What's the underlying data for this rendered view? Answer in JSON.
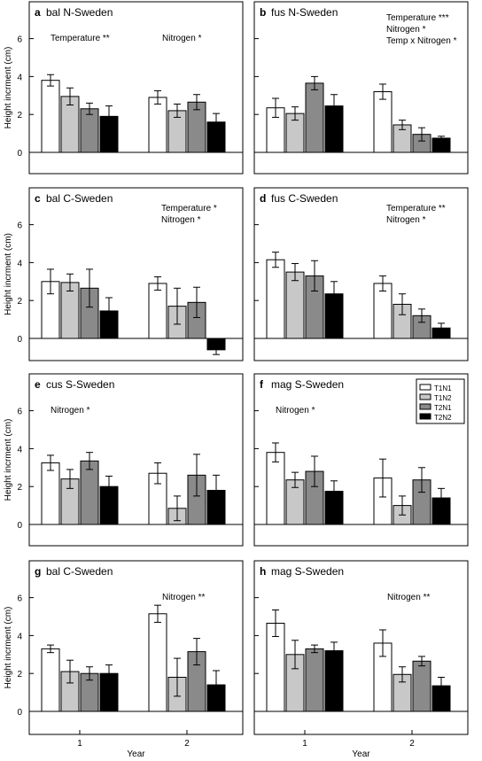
{
  "figure": {
    "xlabel": "Year",
    "ylabel": "Height incrment (cm)",
    "xticks": [
      "1",
      "2"
    ],
    "yticks": [
      "0",
      "2",
      "4",
      "6"
    ],
    "legend": [
      "T1N1",
      "T1N2",
      "T2N1",
      "T2N2"
    ],
    "colors": {
      "T1N1": "#ffffff",
      "T1N2": "#c8c8c8",
      "T2N1": "#8a8a8a",
      "T2N2": "#000000"
    }
  },
  "chart_data": [
    {
      "type": "bar",
      "letter": "a",
      "title": "bal N-Sweden",
      "annotations": [
        {
          "text": "Temperature **",
          "pos": "year1"
        },
        {
          "text": "Nitrogen *",
          "pos": "year2"
        }
      ],
      "categories": [
        "1",
        "2"
      ],
      "ylim": [
        -1.2,
        7.4
      ],
      "series": [
        {
          "name": "T1N1",
          "values": [
            3.8,
            2.9
          ],
          "errors": [
            0.3,
            0.35
          ]
        },
        {
          "name": "T1N2",
          "values": [
            2.95,
            2.2
          ],
          "errors": [
            0.45,
            0.35
          ]
        },
        {
          "name": "T2N1",
          "values": [
            2.3,
            2.65
          ],
          "errors": [
            0.3,
            0.4
          ]
        },
        {
          "name": "T2N2",
          "values": [
            1.9,
            1.6
          ],
          "errors": [
            0.55,
            0.45
          ]
        }
      ]
    },
    {
      "type": "bar",
      "letter": "b",
      "title": "fus N-Sweden",
      "annotations": [
        {
          "text": "Temperature ***",
          "pos": "right"
        },
        {
          "text": "Nitrogen *",
          "pos": "right"
        },
        {
          "text": "Temp x Nitrogen *",
          "pos": "right"
        }
      ],
      "categories": [
        "1",
        "2"
      ],
      "ylim": [
        -1.2,
        7.4
      ],
      "series": [
        {
          "name": "T1N1",
          "values": [
            2.35,
            3.2
          ],
          "errors": [
            0.5,
            0.4
          ]
        },
        {
          "name": "T1N2",
          "values": [
            2.05,
            1.45
          ],
          "errors": [
            0.35,
            0.25
          ]
        },
        {
          "name": "T2N1",
          "values": [
            3.65,
            0.95
          ],
          "errors": [
            0.35,
            0.35
          ]
        },
        {
          "name": "T2N2",
          "values": [
            2.45,
            0.75
          ],
          "errors": [
            0.6,
            0.1
          ]
        }
      ]
    },
    {
      "type": "bar",
      "letter": "c",
      "title": "bal C-Sweden",
      "annotations": [
        {
          "text": "Temperature *",
          "pos": "right"
        },
        {
          "text": "Nitrogen *",
          "pos": "right"
        }
      ],
      "categories": [
        "1",
        "2"
      ],
      "ylim": [
        -1.2,
        7.4
      ],
      "series": [
        {
          "name": "T1N1",
          "values": [
            3.0,
            2.9
          ],
          "errors": [
            0.65,
            0.35
          ]
        },
        {
          "name": "T1N2",
          "values": [
            2.95,
            1.7
          ],
          "errors": [
            0.45,
            0.95
          ]
        },
        {
          "name": "T2N1",
          "values": [
            2.65,
            1.9
          ],
          "errors": [
            1.0,
            0.8
          ]
        },
        {
          "name": "T2N2",
          "values": [
            1.45,
            -0.6
          ],
          "errors": [
            0.7,
            0.25
          ]
        }
      ]
    },
    {
      "type": "bar",
      "letter": "d",
      "title": "fus C-Sweden",
      "annotations": [
        {
          "text": "Temperature **",
          "pos": "right"
        },
        {
          "text": "Nitrogen *",
          "pos": "right"
        }
      ],
      "categories": [
        "1",
        "2"
      ],
      "ylim": [
        -1.2,
        7.4
      ],
      "series": [
        {
          "name": "T1N1",
          "values": [
            4.15,
            2.9
          ],
          "errors": [
            0.4,
            0.4
          ]
        },
        {
          "name": "T1N2",
          "values": [
            3.5,
            1.8
          ],
          "errors": [
            0.45,
            0.55
          ]
        },
        {
          "name": "T2N1",
          "values": [
            3.3,
            1.2
          ],
          "errors": [
            0.8,
            0.35
          ]
        },
        {
          "name": "T2N2",
          "values": [
            2.35,
            0.55
          ],
          "errors": [
            0.65,
            0.25
          ]
        }
      ]
    },
    {
      "type": "bar",
      "letter": "e",
      "title": "cus S-Sweden",
      "annotations": [
        {
          "text": "Nitrogen *",
          "pos": "year1"
        }
      ],
      "categories": [
        "1",
        "2"
      ],
      "ylim": [
        -1.2,
        7.4
      ],
      "series": [
        {
          "name": "T1N1",
          "values": [
            3.25,
            2.7
          ],
          "errors": [
            0.4,
            0.55
          ]
        },
        {
          "name": "T1N2",
          "values": [
            2.4,
            0.85
          ],
          "errors": [
            0.5,
            0.65
          ]
        },
        {
          "name": "T2N1",
          "values": [
            3.35,
            2.6
          ],
          "errors": [
            0.45,
            1.1
          ]
        },
        {
          "name": "T2N2",
          "values": [
            2.0,
            1.8
          ],
          "errors": [
            0.55,
            0.8
          ]
        }
      ]
    },
    {
      "type": "bar",
      "letter": "f",
      "title": "mag S-Sweden",
      "annotations": [
        {
          "text": "Nitrogen *",
          "pos": "year1"
        }
      ],
      "categories": [
        "1",
        "2"
      ],
      "ylim": [
        -1.2,
        7.4
      ],
      "legend": "top-right",
      "series": [
        {
          "name": "T1N1",
          "values": [
            3.8,
            2.45
          ],
          "errors": [
            0.5,
            1.0
          ]
        },
        {
          "name": "T1N2",
          "values": [
            2.35,
            1.0
          ],
          "errors": [
            0.4,
            0.5
          ]
        },
        {
          "name": "T2N1",
          "values": [
            2.8,
            2.35
          ],
          "errors": [
            0.8,
            0.65
          ]
        },
        {
          "name": "T2N2",
          "values": [
            1.75,
            1.4
          ],
          "errors": [
            0.55,
            0.5
          ]
        }
      ]
    },
    {
      "type": "bar",
      "letter": "g",
      "title": "bal C-Sweden",
      "annotations": [
        {
          "text": "Nitrogen **",
          "pos": "year2"
        }
      ],
      "categories": [
        "1",
        "2"
      ],
      "ylim": [
        -1.2,
        7.4
      ],
      "series": [
        {
          "name": "T1N1",
          "values": [
            3.3,
            5.15
          ],
          "errors": [
            0.2,
            0.45
          ]
        },
        {
          "name": "T1N2",
          "values": [
            2.1,
            1.8
          ],
          "errors": [
            0.6,
            1.0
          ]
        },
        {
          "name": "T2N1",
          "values": [
            2.0,
            3.15
          ],
          "errors": [
            0.35,
            0.7
          ]
        },
        {
          "name": "T2N2",
          "values": [
            2.0,
            1.4
          ],
          "errors": [
            0.45,
            0.75
          ]
        }
      ]
    },
    {
      "type": "bar",
      "letter": "h",
      "title": "mag S-Sweden",
      "annotations": [
        {
          "text": "Nitrogen **",
          "pos": "year2"
        }
      ],
      "categories": [
        "1",
        "2"
      ],
      "ylim": [
        -1.2,
        7.4
      ],
      "series": [
        {
          "name": "T1N1",
          "values": [
            4.65,
            3.6
          ],
          "errors": [
            0.7,
            0.7
          ]
        },
        {
          "name": "T1N2",
          "values": [
            3.0,
            1.95
          ],
          "errors": [
            0.75,
            0.4
          ]
        },
        {
          "name": "T2N1",
          "values": [
            3.3,
            2.65
          ],
          "errors": [
            0.2,
            0.25
          ]
        },
        {
          "name": "T2N2",
          "values": [
            3.2,
            1.35
          ],
          "errors": [
            0.45,
            0.45
          ]
        }
      ]
    }
  ]
}
